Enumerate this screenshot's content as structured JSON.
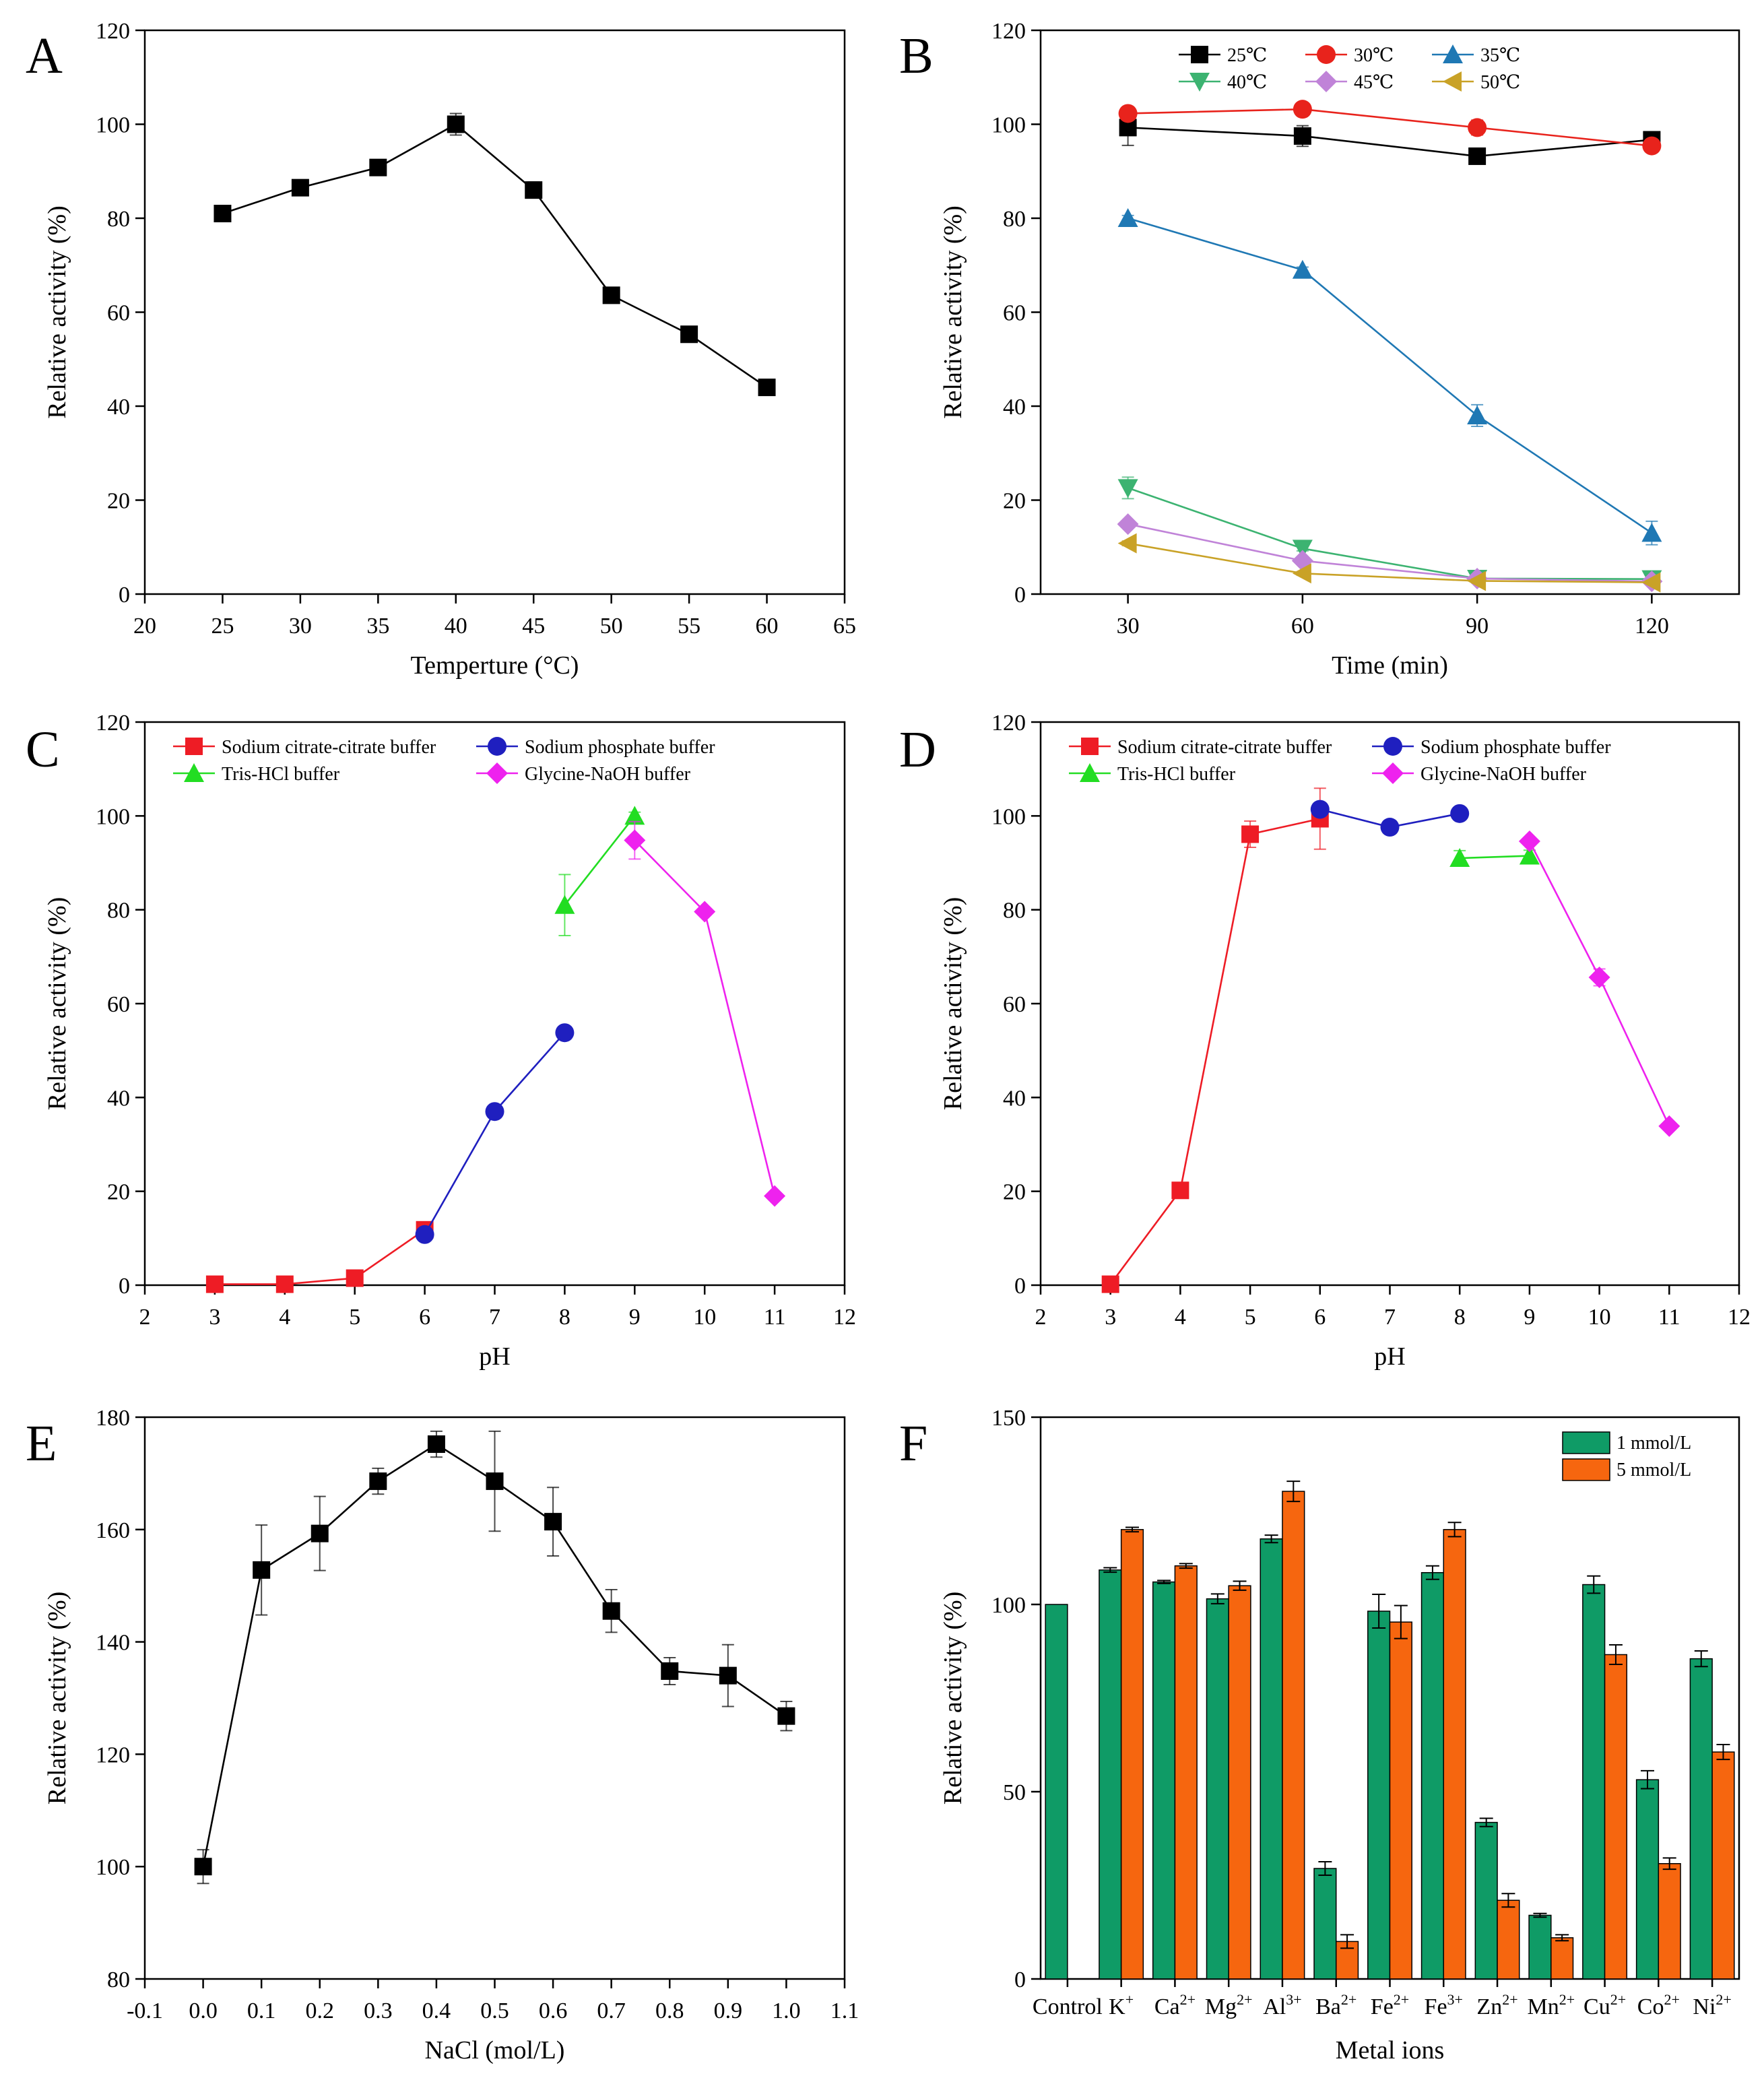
{
  "chart_data": [
    {
      "panel": "A",
      "type": "line",
      "xlabel": "Temperture (°C)",
      "ylabel": "Relative activity (%)",
      "xlim": [
        20,
        65
      ],
      "ylim": [
        0,
        120
      ],
      "xticks": [
        20,
        25,
        30,
        35,
        40,
        45,
        50,
        55,
        60,
        65
      ],
      "yticks": [
        0,
        20,
        40,
        60,
        80,
        100,
        120
      ],
      "legend": null,
      "series": [
        {
          "name": "",
          "color": "#000000",
          "marker": "square",
          "x": [
            25,
            30,
            35,
            40,
            45,
            50,
            55,
            60
          ],
          "y": [
            81,
            86.5,
            90.8,
            100,
            86,
            63.6,
            55.3,
            44
          ],
          "err": [
            0.8,
            0.8,
            0.8,
            2.3,
            1.7,
            0.6,
            0.5,
            0.4
          ]
        }
      ]
    },
    {
      "panel": "B",
      "type": "line",
      "xlabel": "Time (min)",
      "ylabel": "Relative activity (%)",
      "xlim": [
        15,
        135
      ],
      "ylim": [
        0,
        120
      ],
      "xticks": [
        30,
        60,
        90,
        120
      ],
      "yticks": [
        0,
        20,
        40,
        60,
        80,
        100,
        120
      ],
      "legend": {
        "position": "top",
        "columns": 3
      },
      "series": [
        {
          "name": "25℃",
          "color": "#000000",
          "marker": "square",
          "x": [
            30,
            60,
            90,
            120
          ],
          "y": [
            99.3,
            97.5,
            93.2,
            96.7
          ],
          "err": [
            3.8,
            2.2,
            0.5,
            0.5
          ]
        },
        {
          "name": "30℃",
          "color": "#e8231c",
          "marker": "circle",
          "x": [
            30,
            60,
            90,
            120
          ],
          "y": [
            102.3,
            103.2,
            99.3,
            95.4
          ],
          "err": [
            0.6,
            0.5,
            1.6,
            0.5
          ]
        },
        {
          "name": "35℃",
          "color": "#1f78b4",
          "marker": "triangle-up",
          "x": [
            30,
            60,
            90,
            120
          ],
          "y": [
            80,
            69,
            38,
            13
          ],
          "err": [
            0.6,
            0.6,
            2.3,
            2.5
          ]
        },
        {
          "name": "40℃",
          "color": "#3cb371",
          "marker": "triangle-down",
          "x": [
            30,
            60,
            90,
            120
          ],
          "y": [
            22.6,
            9.7,
            3.3,
            3.2
          ],
          "err": [
            2.3,
            0.5,
            0.4,
            0.4
          ]
        },
        {
          "name": "45℃",
          "color": "#c083d8",
          "marker": "diamond",
          "x": [
            30,
            60,
            90,
            120
          ],
          "y": [
            14.9,
            7.1,
            3.3,
            2.7
          ],
          "err": [
            0.6,
            0.5,
            0.4,
            0.4
          ]
        },
        {
          "name": "50℃",
          "color": "#c9a227",
          "marker": "triangle-left",
          "x": [
            30,
            60,
            90,
            120
          ],
          "y": [
            10.8,
            4.4,
            2.8,
            2.5
          ],
          "err": [
            0.5,
            0.4,
            0.4,
            0.4
          ]
        }
      ]
    },
    {
      "panel": "C",
      "type": "line",
      "xlabel": "pH",
      "ylabel": "Relative activity (%)",
      "xlim": [
        2,
        12
      ],
      "ylim": [
        0,
        120
      ],
      "xticks": [
        2,
        3,
        4,
        5,
        6,
        7,
        8,
        9,
        10,
        11,
        12
      ],
      "yticks": [
        0,
        20,
        40,
        60,
        80,
        100,
        120
      ],
      "legend": {
        "position": "top",
        "columns": 2
      },
      "series": [
        {
          "name": "Sodium citrate-citrate buffer",
          "color": "#ee1c25",
          "marker": "square",
          "x": [
            3,
            4,
            5,
            6
          ],
          "y": [
            0.2,
            0.2,
            1.5,
            11.8
          ],
          "err": [
            0,
            0,
            0.5,
            0.8
          ]
        },
        {
          "name": "Sodium phosphate buffer",
          "color": "#1f1fbf",
          "marker": "circle",
          "x": [
            6,
            7,
            8
          ],
          "y": [
            10.8,
            37,
            53.8
          ],
          "err": [
            0.5,
            0.6,
            0.6
          ]
        },
        {
          "name": "Tris-HCl buffer",
          "color": "#22dd22",
          "marker": "triangle-up",
          "x": [
            8,
            9
          ],
          "y": [
            81,
            100
          ],
          "err": [
            6.5,
            0.8
          ]
        },
        {
          "name": "Glycine-NaOH buffer",
          "color": "#ee22ee",
          "marker": "diamond",
          "x": [
            9,
            10,
            11
          ],
          "y": [
            94.8,
            79.6,
            19
          ],
          "err": [
            4,
            0.6,
            0.5
          ]
        }
      ]
    },
    {
      "panel": "D",
      "type": "line",
      "xlabel": "pH",
      "ylabel": "Relative activity (%)",
      "xlim": [
        2,
        12
      ],
      "ylim": [
        0,
        120
      ],
      "xticks": [
        2,
        3,
        4,
        5,
        6,
        7,
        8,
        9,
        10,
        11,
        12
      ],
      "yticks": [
        0,
        20,
        40,
        60,
        80,
        100,
        120
      ],
      "legend": {
        "position": "top",
        "columns": 2
      },
      "series": [
        {
          "name": "Sodium citrate-citrate buffer",
          "color": "#ee1c25",
          "marker": "square",
          "x": [
            3,
            4,
            5,
            6
          ],
          "y": [
            0.2,
            20.2,
            96.1,
            99.4
          ],
          "err": [
            0,
            0.5,
            2.8,
            6.5
          ]
        },
        {
          "name": "Sodium phosphate buffer",
          "color": "#1f1fbf",
          "marker": "circle",
          "x": [
            6,
            7,
            8
          ],
          "y": [
            101.4,
            97.6,
            100.5
          ],
          "err": [
            0.6,
            0.5,
            0.6
          ]
        },
        {
          "name": "Tris-HCl buffer",
          "color": "#22dd22",
          "marker": "triangle-up",
          "x": [
            8,
            9
          ],
          "y": [
            91,
            91.5
          ],
          "err": [
            1.6,
            1.2
          ]
        },
        {
          "name": "Glycine-NaOH buffer",
          "color": "#ee22ee",
          "marker": "diamond",
          "x": [
            9,
            10,
            11
          ],
          "y": [
            94.6,
            65.6,
            33.9
          ],
          "err": [
            0.6,
            1.8,
            0.6
          ]
        }
      ]
    },
    {
      "panel": "E",
      "type": "line",
      "xlabel": "NaCl (mol/L)",
      "ylabel": "Relative activity (%)",
      "xlim": [
        -0.1,
        1.1
      ],
      "ylim": [
        80,
        180
      ],
      "xticks": [
        -0.1,
        0.0,
        0.1,
        0.2,
        0.3,
        0.4,
        0.5,
        0.6,
        0.7,
        0.8,
        0.9,
        1.0,
        1.1
      ],
      "xticklabels": [
        "-0.1",
        "0.0",
        "0.1",
        "0.2",
        "0.3",
        "0.4",
        "0.5",
        "0.6",
        "0.7",
        "0.8",
        "0.9",
        "1.0",
        "1.1"
      ],
      "yticks": [
        80,
        100,
        120,
        140,
        160,
        180
      ],
      "legend": null,
      "series": [
        {
          "name": "",
          "color": "#000000",
          "marker": "square",
          "x": [
            0.0,
            0.1,
            0.2,
            0.3,
            0.4,
            0.5,
            0.6,
            0.7,
            0.8,
            0.9,
            1.0
          ],
          "y": [
            100,
            152.8,
            159.3,
            168.6,
            175.2,
            168.6,
            161.4,
            145.5,
            134.8,
            134,
            126.8
          ],
          "err": [
            3,
            8,
            6.6,
            2.3,
            2.3,
            8.9,
            6.1,
            3.8,
            2.4,
            5.5,
            2.6
          ]
        }
      ]
    },
    {
      "panel": "F",
      "type": "bar",
      "xlabel": "Metal ions",
      "ylabel": "Relative activity (%)",
      "ylim": [
        0,
        150
      ],
      "yticks": [
        0,
        50,
        100,
        150
      ],
      "categories": [
        "Control",
        "K+",
        "Ca2+",
        "Mg2+",
        "Al3+",
        "Ba2+",
        "Fe2+",
        "Fe3+",
        "Zn2+",
        "Mn2+",
        "Cu2+",
        "Co2+",
        "Ni2+"
      ],
      "category_labels": [
        {
          "base": "Control",
          "sup": ""
        },
        {
          "base": "K",
          "sup": "+"
        },
        {
          "base": "Ca",
          "sup": "2+"
        },
        {
          "base": "Mg",
          "sup": "2+"
        },
        {
          "base": "Al",
          "sup": "3+"
        },
        {
          "base": "Ba",
          "sup": "2+"
        },
        {
          "base": "Fe",
          "sup": "2+"
        },
        {
          "base": "Fe",
          "sup": "3+"
        },
        {
          "base": "Zn",
          "sup": "2+"
        },
        {
          "base": "Mn",
          "sup": "2+"
        },
        {
          "base": "Cu",
          "sup": "2+"
        },
        {
          "base": "Co",
          "sup": "2+"
        },
        {
          "base": "Ni",
          "sup": "2+"
        }
      ],
      "legend": {
        "position": "top-right",
        "columns": 1
      },
      "series": [
        {
          "name": "1 mmol/L",
          "color": "#0f9b66",
          "values": [
            100,
            109.2,
            106,
            101.5,
            117.5,
            29.5,
            98.2,
            108.5,
            41.8,
            17,
            105.3,
            53.2,
            85.5
          ],
          "err": [
            0,
            0.6,
            0.4,
            1.3,
            1,
            1.8,
            4.5,
            1.8,
            1.1,
            0.5,
            2.3,
            2.4,
            2.1
          ]
        },
        {
          "name": "5 mmol/L",
          "color": "#f6660f",
          "values": [
            null,
            120,
            110.3,
            105,
            130.2,
            10,
            95.3,
            120,
            21,
            11,
            86.6,
            30.8,
            60.6
          ],
          "err": [
            0,
            0.6,
            0.6,
            1.2,
            2.7,
            1.8,
            4.4,
            1.9,
            1.8,
            0.8,
            2.6,
            1.5,
            2
          ]
        }
      ]
    }
  ]
}
